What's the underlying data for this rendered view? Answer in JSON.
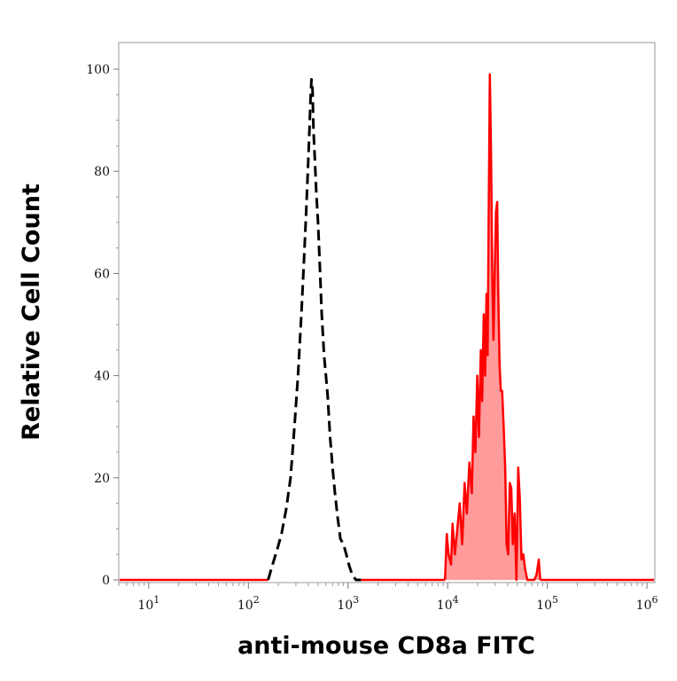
{
  "chart_data": {
    "type": "area",
    "title": "",
    "xlabel": "anti-mouse CD8a FITC",
    "ylabel": "Relative Cell Count",
    "x_scale": "log",
    "xlim": [
      5,
      1200000
    ],
    "ylim": [
      0,
      100
    ],
    "x_ticks": [
      {
        "value": 10,
        "base": "10",
        "exp": "1"
      },
      {
        "value": 100,
        "base": "10",
        "exp": "2"
      },
      {
        "value": 1000,
        "base": "10",
        "exp": "3"
      },
      {
        "value": 10000,
        "base": "10",
        "exp": "4"
      },
      {
        "value": 100000,
        "base": "10",
        "exp": "5"
      },
      {
        "value": 1000000,
        "base": "10",
        "exp": "6"
      }
    ],
    "y_ticks": [
      "0",
      "20",
      "40",
      "60",
      "80",
      "100"
    ],
    "colors": {
      "control": "#000000",
      "stained_line": "#ff0000",
      "stained_fill": "#ff9b9b",
      "frame": "#9a9a9a"
    },
    "series": [
      {
        "style": "dashed",
        "color": "#000000",
        "x": [
          158,
          175,
          195,
          215,
          240,
          265,
          290,
          315,
          340,
          360,
          380,
          395,
          410,
          420,
          430,
          440,
          450,
          465,
          480,
          500,
          520,
          545,
          575,
          600,
          625,
          660,
          700,
          740,
          790,
          840,
          900,
          960,
          1020,
          1100,
          1200,
          1350
        ],
        "y": [
          0,
          3,
          6,
          9,
          14,
          20,
          30,
          40,
          52,
          62,
          72,
          80,
          88,
          94,
          98,
          96,
          88,
          82,
          76,
          70,
          62,
          52,
          44,
          40,
          36,
          28,
          22,
          17,
          12,
          8,
          7,
          5,
          3,
          1,
          0,
          0
        ]
      },
      {
        "style": "solid-filled",
        "color": "#ff0000",
        "x": [
          9400,
          9800,
          10200,
          10800,
          11200,
          11800,
          12500,
          13200,
          14000,
          14800,
          15600,
          16500,
          17500,
          18200,
          19000,
          19800,
          20600,
          21500,
          22200,
          23000,
          23800,
          24500,
          25200,
          25800,
          26500,
          27200,
          28000,
          28800,
          29600,
          30500,
          31400,
          32200,
          33200,
          34200,
          35200,
          36500,
          37800,
          39000,
          40500,
          42000,
          43500,
          45000,
          47000,
          49000,
          51000,
          53000,
          55000,
          57500,
          60000,
          63000,
          66000,
          70000,
          74000,
          78000,
          82000,
          85000
        ],
        "y": [
          0,
          9,
          5,
          3,
          11,
          5,
          10,
          15,
          7,
          19,
          13,
          23,
          17,
          32,
          25,
          40,
          28,
          45,
          35,
          52,
          40,
          56,
          44,
          72,
          99,
          84,
          60,
          47,
          59,
          72,
          74,
          56,
          42,
          37,
          37,
          30,
          22,
          7,
          5,
          19,
          18,
          7,
          13,
          0,
          22,
          16,
          4,
          5,
          2,
          0,
          0,
          0,
          0,
          1,
          4,
          0
        ]
      }
    ]
  }
}
